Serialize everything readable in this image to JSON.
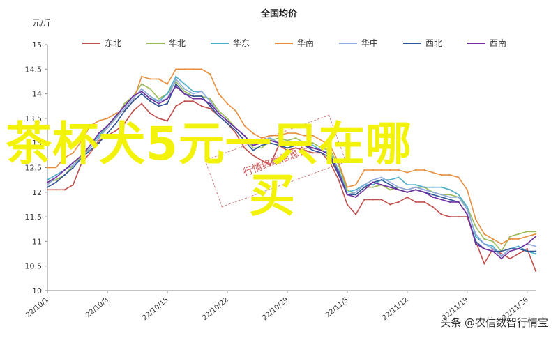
{
  "chart_data": {
    "type": "line",
    "title": "全国均价",
    "unit_label": "元/斤",
    "ylim": [
      10,
      15
    ],
    "yticks": [
      "10",
      "10.5",
      "11",
      "11.5",
      "12",
      "12.5",
      "13",
      "13.5",
      "14",
      "14.5",
      "15"
    ],
    "xtick_labels": [
      "22/10/1",
      "22/10/8",
      "22/10/15",
      "22/10/22",
      "22/10/29",
      "22/11/5",
      "22/11/12",
      "22/11/19",
      "22/11/26"
    ],
    "legend_position": "top",
    "grid": false,
    "series": [
      {
        "name": "东北",
        "color": "#c0504d",
        "values": [
          12.05,
          12.05,
          12.05,
          12.15,
          12.6,
          12.8,
          13.05,
          13.15,
          13.25,
          13.4,
          13.65,
          13.8,
          13.6,
          13.5,
          13.45,
          13.75,
          13.85,
          13.85,
          13.75,
          13.7,
          13.55,
          13.4,
          13.2,
          12.9,
          12.75,
          12.65,
          12.55,
          12.95,
          12.85,
          12.9,
          12.85,
          12.8,
          12.8,
          12.6,
          12.25,
          11.75,
          11.55,
          11.85,
          11.85,
          11.85,
          11.75,
          11.8,
          11.9,
          11.8,
          11.8,
          11.7,
          11.55,
          11.5,
          11.5,
          11.5,
          11.0,
          10.55,
          10.85,
          10.75,
          10.65,
          10.75,
          10.85,
          10.4
        ]
      },
      {
        "name": "华北",
        "color": "#9bbb59",
        "values": [
          12.2,
          12.25,
          12.35,
          12.55,
          12.75,
          12.9,
          13.1,
          13.35,
          13.5,
          13.8,
          13.95,
          14.2,
          14.1,
          13.9,
          14.0,
          14.25,
          14.05,
          13.95,
          13.95,
          13.9,
          13.65,
          13.5,
          13.3,
          13.15,
          12.9,
          12.9,
          13.05,
          13.1,
          13.05,
          13.1,
          13.0,
          13.0,
          12.9,
          12.85,
          12.55,
          12.05,
          11.95,
          12.1,
          12.1,
          12.15,
          12.05,
          12.1,
          12.05,
          12.1,
          12.1,
          12.0,
          11.95,
          11.95,
          11.9,
          11.7,
          11.3,
          11.05,
          11.0,
          10.8,
          11.1,
          11.15,
          11.2,
          11.2
        ]
      },
      {
        "name": "华东",
        "color": "#4bacc6",
        "values": [
          12.25,
          12.35,
          12.45,
          12.6,
          12.75,
          12.95,
          13.15,
          13.35,
          13.55,
          13.75,
          13.95,
          14.05,
          13.9,
          13.85,
          14.0,
          14.35,
          14.2,
          14.05,
          14.05,
          13.85,
          13.6,
          13.45,
          13.3,
          13.15,
          12.95,
          13.05,
          13.1,
          13.0,
          12.95,
          13.0,
          13.0,
          12.95,
          12.85,
          12.8,
          12.45,
          12.0,
          12.05,
          12.15,
          12.15,
          12.25,
          12.25,
          12.3,
          12.15,
          12.15,
          12.1,
          12.1,
          12.1,
          12.05,
          11.95,
          11.7,
          11.1,
          10.95,
          10.9,
          10.7,
          10.85,
          10.9,
          10.8,
          10.75
        ]
      },
      {
        "name": "华南",
        "color": "#e88f3f",
        "values": [
          12.5,
          12.5,
          12.7,
          12.8,
          13.05,
          13.35,
          13.45,
          13.5,
          13.6,
          13.65,
          13.85,
          14.35,
          14.3,
          14.3,
          14.2,
          14.5,
          14.5,
          14.5,
          14.5,
          14.4,
          14.0,
          13.8,
          13.65,
          13.35,
          13.2,
          13.1,
          13.15,
          13.15,
          13.2,
          13.2,
          13.15,
          13.15,
          13.05,
          12.95,
          12.6,
          12.1,
          12.15,
          12.45,
          12.45,
          12.45,
          12.45,
          12.45,
          12.4,
          12.45,
          12.45,
          12.4,
          12.35,
          12.35,
          12.3,
          12.05,
          11.45,
          11.15,
          11.05,
          10.95,
          11.05,
          11.05,
          11.1,
          11.15
        ]
      },
      {
        "name": "华中",
        "color": "#8faadc",
        "values": [
          12.15,
          12.3,
          12.45,
          12.55,
          12.7,
          12.9,
          13.1,
          13.3,
          13.5,
          13.7,
          13.9,
          14.1,
          13.95,
          13.85,
          13.9,
          14.3,
          14.1,
          14.0,
          14.05,
          13.85,
          13.6,
          13.45,
          13.3,
          13.15,
          12.95,
          13.0,
          13.1,
          13.0,
          12.95,
          13.0,
          12.95,
          12.9,
          12.85,
          12.75,
          12.4,
          11.95,
          12.0,
          12.15,
          12.25,
          12.3,
          12.2,
          12.1,
          12.05,
          12.1,
          12.05,
          12.0,
          11.95,
          11.9,
          11.9,
          11.65,
          11.15,
          10.95,
          10.85,
          10.7,
          10.85,
          10.85,
          10.95,
          10.9
        ]
      },
      {
        "name": "西北",
        "color": "#2f5597",
        "values": [
          12.1,
          12.2,
          12.35,
          12.5,
          12.7,
          12.85,
          13.0,
          13.2,
          13.4,
          13.65,
          13.85,
          14.0,
          13.85,
          13.75,
          13.8,
          14.2,
          14.0,
          13.95,
          13.95,
          13.75,
          13.55,
          13.4,
          13.25,
          13.05,
          12.85,
          12.95,
          13.0,
          12.95,
          12.9,
          12.95,
          12.95,
          12.85,
          12.8,
          12.7,
          12.35,
          11.95,
          11.95,
          12.1,
          12.2,
          12.25,
          12.15,
          12.05,
          12.0,
          12.05,
          12.0,
          11.95,
          11.9,
          11.85,
          11.8,
          11.55,
          11.0,
          10.85,
          10.8,
          10.8,
          10.85,
          10.85,
          10.8,
          10.8
        ]
      },
      {
        "name": "西南",
        "color": "#7030a0",
        "values": [
          12.2,
          12.3,
          12.45,
          12.6,
          12.75,
          12.95,
          13.2,
          13.35,
          13.55,
          13.75,
          13.95,
          14.05,
          13.9,
          13.8,
          13.9,
          14.15,
          14.0,
          13.9,
          13.9,
          13.8,
          13.6,
          13.45,
          13.3,
          13.15,
          12.95,
          13.0,
          13.05,
          13.0,
          12.95,
          13.0,
          12.95,
          12.9,
          12.85,
          12.75,
          12.4,
          11.95,
          11.9,
          12.05,
          12.2,
          12.15,
          12.1,
          12.05,
          12.0,
          12.05,
          12.0,
          11.9,
          11.85,
          11.8,
          11.8,
          11.55,
          10.95,
          10.85,
          10.8,
          10.65,
          10.8,
          10.85,
          10.95,
          11.1
        ]
      }
    ]
  },
  "overlay": {
    "line1": "茶杯犬5元一只在哪",
    "line2": "买"
  },
  "watermark": {
    "stamp_text": "行情终端信息会",
    "brand": "头条 @农信数智行情宝"
  }
}
